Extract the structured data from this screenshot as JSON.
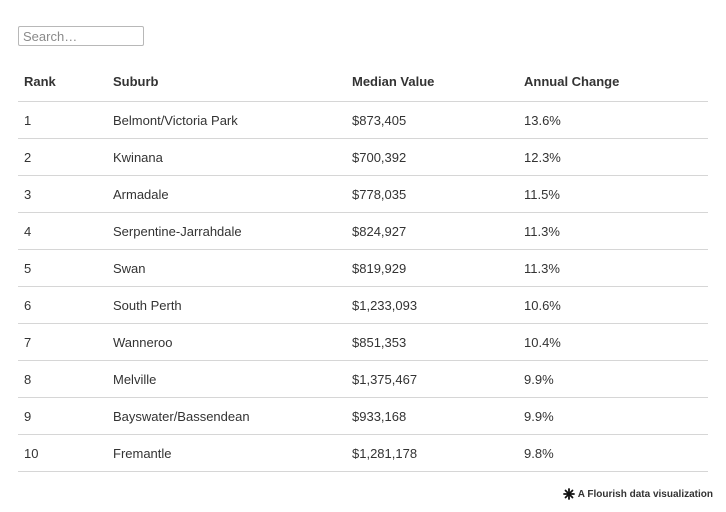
{
  "search": {
    "placeholder": "Search…",
    "value": ""
  },
  "table": {
    "columns": [
      "Rank",
      "Suburb",
      "Median Value",
      "Annual Change"
    ],
    "rows": [
      [
        "1",
        "Belmont/Victoria Park",
        "$873,405",
        "13.6%"
      ],
      [
        "2",
        "Kwinana",
        "$700,392",
        "12.3%"
      ],
      [
        "3",
        "Armadale",
        "$778,035",
        "11.5%"
      ],
      [
        "4",
        "Serpentine-Jarrahdale",
        "$824,927",
        "11.3%"
      ],
      [
        "5",
        "Swan",
        "$819,929",
        "11.3%"
      ],
      [
        "6",
        "South Perth",
        "$1,233,093",
        "10.6%"
      ],
      [
        "7",
        "Wanneroo",
        "$851,353",
        "10.4%"
      ],
      [
        "8",
        "Melville",
        "$1,375,467",
        "9.9%"
      ],
      [
        "9",
        "Bayswater/Bassendean",
        "$933,168",
        "9.9%"
      ],
      [
        "10",
        "Fremantle",
        "$1,281,178",
        "9.8%"
      ]
    ]
  },
  "footer": {
    "credit_text": "A Flourish data visualization",
    "credit_icon": "flourish-logo-icon"
  }
}
